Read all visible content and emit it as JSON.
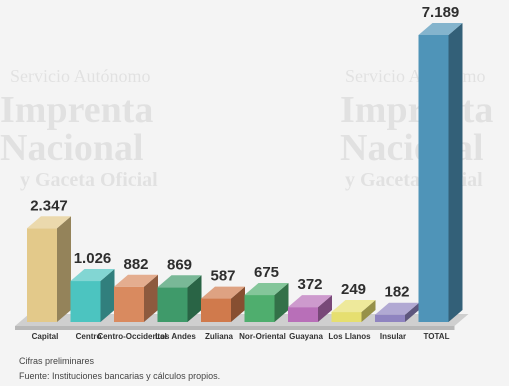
{
  "chart_data": {
    "type": "bar",
    "categories": [
      "Capital",
      "Centro",
      "Centro-Occidental",
      "Los Andes",
      "Zuliana",
      "Nor-Oriental",
      "Guayana",
      "Los Llanos",
      "Insular",
      "TOTAL"
    ],
    "values": [
      2347,
      1026,
      882,
      869,
      587,
      675,
      372,
      249,
      182,
      7189
    ],
    "value_labels": [
      "2.347",
      "1.026",
      "882",
      "869",
      "587",
      "675",
      "372",
      "249",
      "182",
      "7.189"
    ],
    "ylim": [
      0,
      7189
    ],
    "grid": false,
    "legend": "none",
    "colors": [
      "#e3c98a",
      "#4cc4c0",
      "#d98a5f",
      "#3f9a6a",
      "#d07a4c",
      "#4fae6e",
      "#b86fb8",
      "#e6df70",
      "#8f84c0",
      "#4f94b8"
    ]
  },
  "notes": {
    "line1": "Cifras preliminares",
    "line2": "Fuente: Instituciones bancarias y cálculos propios."
  },
  "watermark": {
    "lines": [
      "Servicio Autónomo",
      "Imprenta",
      "Nacional",
      "y Gaceta Oficial"
    ]
  }
}
